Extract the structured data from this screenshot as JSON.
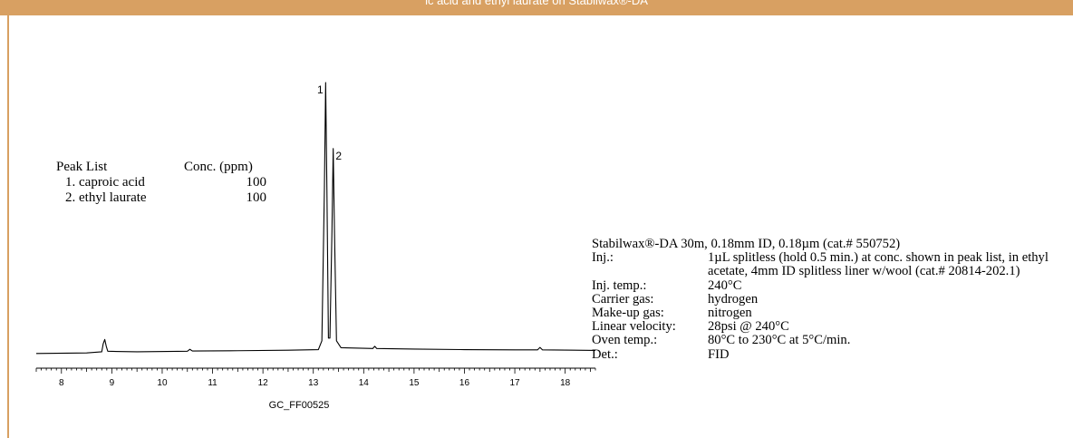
{
  "header": {
    "title": "ic acid and ethyl laurate on Stabilwax®-DA"
  },
  "chart_data": {
    "type": "line",
    "title": "",
    "xlabel": "",
    "ylabel": "",
    "x_ticks": [
      8,
      9,
      10,
      11,
      12,
      13,
      14,
      15,
      16,
      17,
      18
    ],
    "xlim": [
      7.5,
      18.6
    ],
    "series": [
      {
        "points": [
          [
            7.5,
            0.004
          ],
          [
            8.5,
            0.006
          ],
          [
            8.8,
            0.01
          ],
          [
            8.83,
            0.04
          ],
          [
            8.86,
            0.055
          ],
          [
            8.89,
            0.03
          ],
          [
            8.92,
            0.012
          ],
          [
            9.5,
            0.01
          ],
          [
            10.5,
            0.012
          ],
          [
            10.55,
            0.019
          ],
          [
            10.6,
            0.013
          ],
          [
            11.5,
            0.014
          ],
          [
            12.5,
            0.016
          ],
          [
            13.1,
            0.018
          ],
          [
            13.17,
            0.05
          ],
          [
            13.22,
            0.6
          ],
          [
            13.245,
            0.99
          ],
          [
            13.27,
            0.6
          ],
          [
            13.3,
            0.06
          ],
          [
            13.33,
            0.06
          ],
          [
            13.37,
            0.45
          ],
          [
            13.395,
            0.75
          ],
          [
            13.42,
            0.45
          ],
          [
            13.46,
            0.05
          ],
          [
            13.55,
            0.025
          ],
          [
            14.18,
            0.022
          ],
          [
            14.22,
            0.03
          ],
          [
            14.26,
            0.022
          ],
          [
            15.0,
            0.02
          ],
          [
            16.0,
            0.018
          ],
          [
            17.0,
            0.017
          ],
          [
            17.45,
            0.017
          ],
          [
            17.5,
            0.026
          ],
          [
            17.55,
            0.017
          ],
          [
            18.6,
            0.015
          ]
        ]
      }
    ],
    "peak_labels": [
      {
        "text": "1",
        "x": 13.245,
        "y": 0.99
      },
      {
        "text": "2",
        "x": 13.395,
        "y": 0.75
      }
    ],
    "code": "GC_FF00525"
  },
  "peak_list": {
    "header_name": "Peak List",
    "header_conc": "Conc. (ppm)",
    "items": [
      {
        "name": "1. caproic acid",
        "conc": "100"
      },
      {
        "name": "2. ethyl laurate",
        "conc": "100"
      }
    ]
  },
  "conditions": {
    "column": "Stabilwax®-DA 30m, 0.18mm ID, 0.18µm (cat.# 550752)",
    "rows": [
      {
        "label": "Inj.:",
        "value": "1µL splitless (hold 0.5 min.) at conc. shown in peak list, in ethyl acetate, 4mm ID splitless liner w/wool (cat.# 20814-202.1)"
      },
      {
        "label": "Inj. temp.:",
        "value": "240°C"
      },
      {
        "label": "Carrier gas:",
        "value": "hydrogen"
      },
      {
        "label": "Make-up gas:",
        "value": "nitrogen"
      },
      {
        "label": "Linear velocity:",
        "value": "28psi @ 240°C"
      },
      {
        "label": "Oven temp.:",
        "value": "80°C to 230°C at 5°C/min."
      },
      {
        "label": "Det.:",
        "value": "FID"
      }
    ]
  }
}
